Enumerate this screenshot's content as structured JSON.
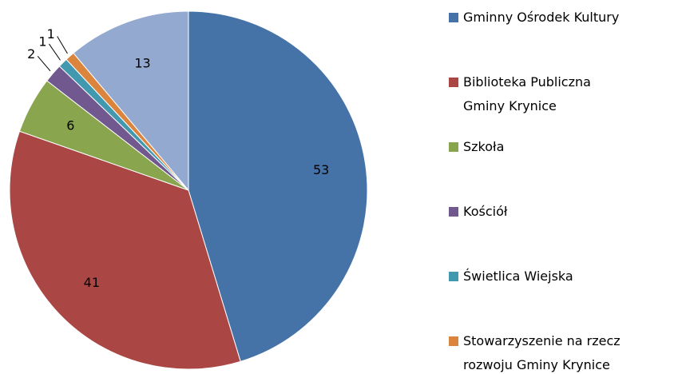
{
  "chart_data": {
    "type": "pie",
    "categories": [
      "Gminny Ośrodek Kultury",
      "Biblioteka Publiczna\nGminy Krynice",
      "Szkoła",
      "Kościół",
      "Świetlica Wiejska",
      "Stowarzyszenie na rzecz\nrozwoju Gminy Krynice",
      null
    ],
    "values": [
      53,
      41,
      6,
      2,
      1,
      1,
      13
    ],
    "colors": [
      "#4572a7",
      "#aa4643",
      "#89a54e",
      "#71588f",
      "#4198af",
      "#db843d",
      "#93a9cf"
    ],
    "legend": "right"
  }
}
